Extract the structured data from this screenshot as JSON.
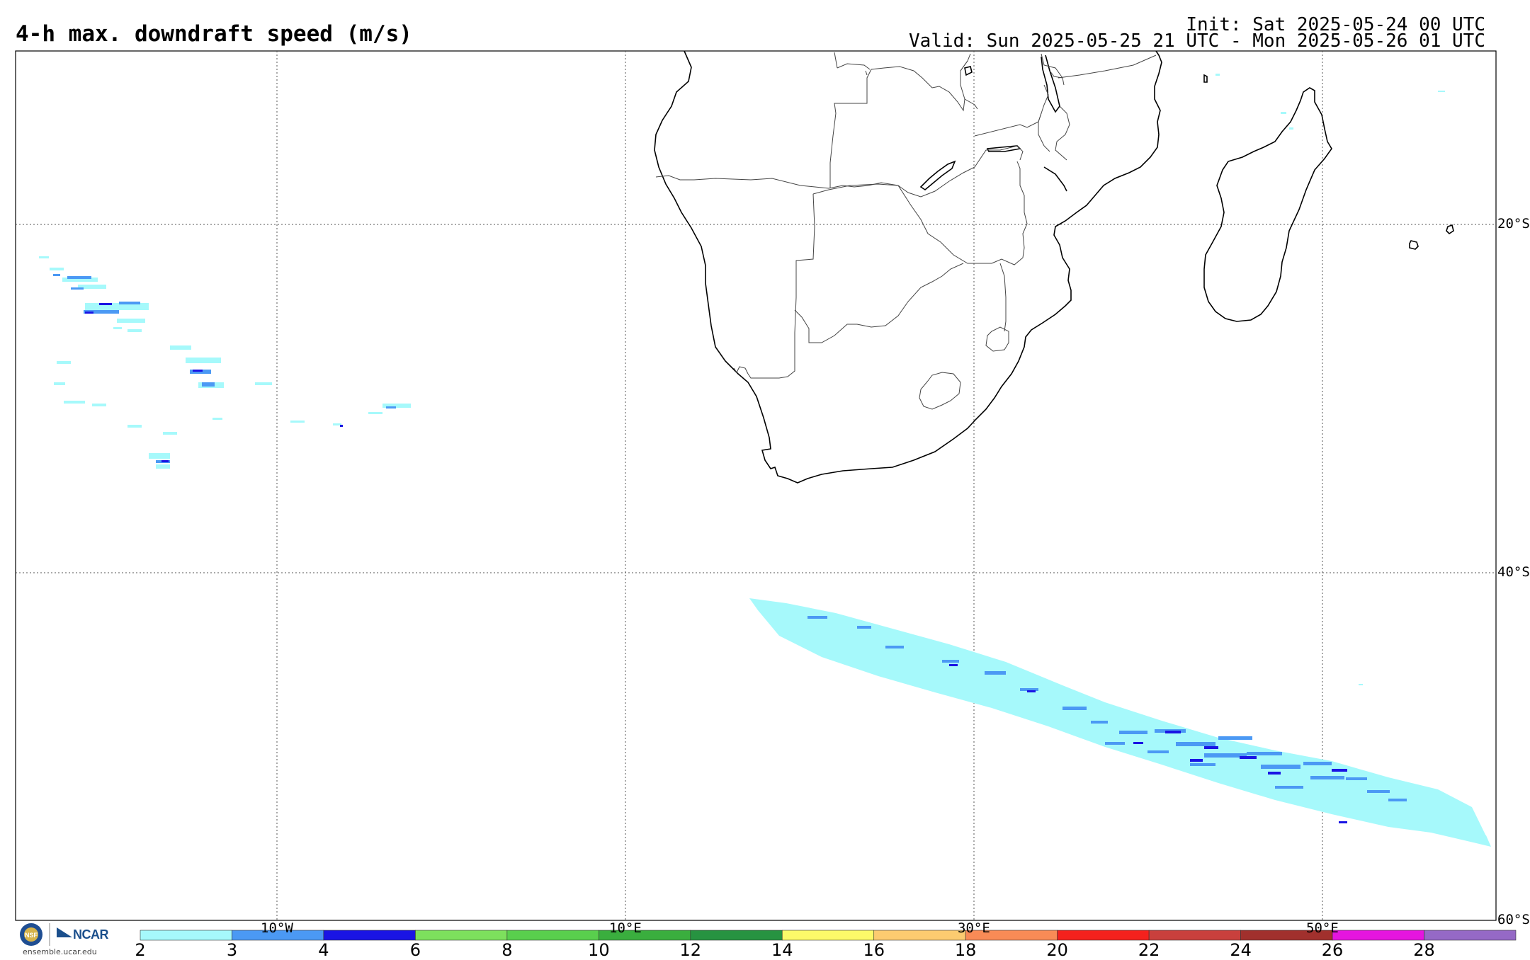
{
  "header": {
    "title": "4-h max. downdraft speed (m/s)",
    "init": "Init: Sat 2025-05-24 00 UTC",
    "valid": "Valid: Sun 2025-05-25 21 UTC - Mon 2025-05-26 01 UTC"
  },
  "map": {
    "lat_labels": [
      "20°S",
      "40°S",
      "60°S"
    ],
    "lon_labels": [
      "10°W",
      "10°E",
      "30°E",
      "50°E"
    ]
  },
  "colorbar": {
    "ticks": [
      "2",
      "3",
      "4",
      "6",
      "8",
      "10",
      "12",
      "14",
      "16",
      "18",
      "20",
      "22",
      "24",
      "26",
      "28"
    ],
    "colors": [
      "#a6f9fb",
      "#4b99f4",
      "#1a14e4",
      "#7de05d",
      "#59cf4d",
      "#3aae3e",
      "#279341",
      "#fdfa69",
      "#fccb70",
      "#f98b56",
      "#f4211d",
      "#c9403d",
      "#a1302d",
      "#e515df",
      "#9569c6"
    ]
  },
  "footer": {
    "logo_nsf": "NSF",
    "logo_ncar": "NCAR",
    "site": "ensemble.ucar.edu"
  }
}
